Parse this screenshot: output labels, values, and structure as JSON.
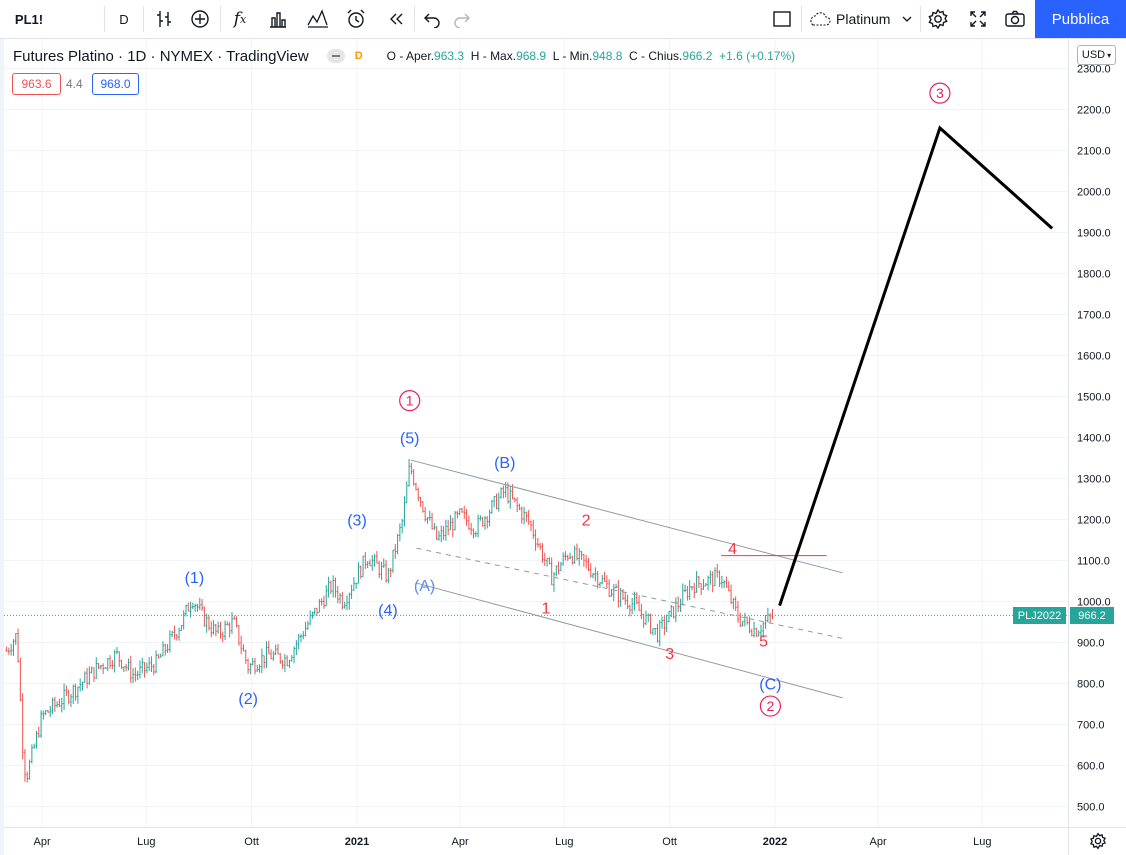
{
  "toolbar": {
    "symbol": "PL1!",
    "interval": "D",
    "instrument_name": "Platinum",
    "publish_label": "Pubblica",
    "icons": [
      "bar-style-icon",
      "add-compare-icon",
      "indicators-icon",
      "financials-icon",
      "templates-icon",
      "alert-icon",
      "replay-icon",
      "undo-icon",
      "redo-icon",
      "layout-icon",
      "cloud-icon",
      "chevron-down-icon",
      "settings-icon",
      "fullscreen-icon",
      "snapshot-icon"
    ]
  },
  "legend": {
    "title": "Futures Platino · 1D · NYMEX · TradingView",
    "badge": "D",
    "open_label": "O - Aper.",
    "open": "963.3",
    "high_label": "H - Max.",
    "high": "968.9",
    "low_label": "L - Min.",
    "low": "948.8",
    "close_label": "C - Chius.",
    "close": "966.2",
    "change": "+1.6 (+0.17%)",
    "bid": "963.6",
    "spread": "4.4",
    "ask": "968.0"
  },
  "price_scale": {
    "currency": "USD",
    "symbol_label": "PLJ2022",
    "last_price": "966.2",
    "last_price_value": 966.2,
    "tick_labels": [
      "2300.0",
      "2200.0",
      "2100.0",
      "2000.0",
      "1900.0",
      "1800.0",
      "1700.0",
      "1600.0",
      "1500.0",
      "1400.0",
      "1300.0",
      "1200.0",
      "1100.0",
      "1000.0",
      "900.0",
      "800.0",
      "700.0",
      "600.0",
      "500.0"
    ]
  },
  "time_axis": {
    "labels": [
      "Apr",
      "Lug",
      "Ott",
      "2021",
      "Apr",
      "Lug",
      "Ott",
      "2022",
      "Apr",
      "Lug"
    ],
    "bold_labels": [
      "2021",
      "2022"
    ]
  },
  "colors": {
    "up": "#26a69a",
    "down": "#ef5350",
    "blue_wave": "#2962ff",
    "red_wave": "#f23645",
    "pink_wave": "#e91e63",
    "lightblue_wave": "#5b8def",
    "channel": "#9598a1",
    "projection": "#000000",
    "accent": "#2962ff"
  },
  "chart_data": {
    "type": "candlestick",
    "instrument": "Futures Platino",
    "ylim": [
      450,
      2325
    ],
    "grid": true,
    "price_path": [
      [
        "2020-03-01",
        880
      ],
      [
        "2020-03-10",
        920
      ],
      [
        "2020-03-16",
        600
      ],
      [
        "2020-03-19",
        580
      ],
      [
        "2020-04-01",
        720
      ],
      [
        "2020-05-01",
        790
      ],
      [
        "2020-05-20",
        840
      ],
      [
        "2020-06-05",
        870
      ],
      [
        "2020-06-20",
        820
      ],
      [
        "2020-07-10",
        850
      ],
      [
        "2020-08-01",
        950
      ],
      [
        "2020-08-10",
        1010
      ],
      [
        "2020-08-20",
        960
      ],
      [
        "2020-09-01",
        920
      ],
      [
        "2020-09-15",
        950
      ],
      [
        "2020-09-28",
        840
      ],
      [
        "2020-10-15",
        870
      ],
      [
        "2020-11-01",
        860
      ],
      [
        "2020-11-20",
        950
      ],
      [
        "2020-12-10",
        1040
      ],
      [
        "2020-12-20",
        1000
      ],
      [
        "2021-01-10",
        1110
      ],
      [
        "2021-01-28",
        1060
      ],
      [
        "2021-02-10",
        1200
      ],
      [
        "2021-02-16",
        1330
      ],
      [
        "2021-03-01",
        1220
      ],
      [
        "2021-03-12",
        1150
      ],
      [
        "2021-04-01",
        1210
      ],
      [
        "2021-04-15",
        1180
      ],
      [
        "2021-05-10",
        1270
      ],
      [
        "2021-06-01",
        1190
      ],
      [
        "2021-06-20",
        1060
      ],
      [
        "2021-07-05",
        1120
      ],
      [
        "2021-07-20",
        1090
      ],
      [
        "2021-08-10",
        1030
      ],
      [
        "2021-09-01",
        990
      ],
      [
        "2021-09-20",
        920
      ],
      [
        "2021-09-30",
        960
      ],
      [
        "2021-10-20",
        1040
      ],
      [
        "2021-11-15",
        1060
      ],
      [
        "2021-11-30",
        960
      ],
      [
        "2021-12-15",
        930
      ],
      [
        "2021-12-31",
        966
      ]
    ],
    "projection": [
      [
        "2022-01-05",
        990
      ],
      [
        "2022-05-25",
        2155
      ],
      [
        "2022-08-31",
        1910
      ]
    ],
    "channel_upper": [
      [
        "2021-02-17",
        1345
      ],
      [
        "2022-03-01",
        1070
      ]
    ],
    "channel_mid": [
      [
        "2021-02-22",
        1130
      ],
      [
        "2022-03-01",
        910
      ]
    ],
    "channel_lower": [
      [
        "2021-02-22",
        1045
      ],
      [
        "2022-03-01",
        765
      ]
    ],
    "wave4_level": [
      [
        "2021-11-15",
        1112
      ],
      [
        "2022-02-15",
        1112
      ]
    ],
    "wave_labels": [
      {
        "text": "(1)",
        "date": "2020-08-12",
        "price": 1060,
        "color": "blue"
      },
      {
        "text": "(2)",
        "date": "2020-09-28",
        "price": 765,
        "color": "blue"
      },
      {
        "text": "(3)",
        "date": "2021-01-01",
        "price": 1200,
        "color": "blue"
      },
      {
        "text": "(4)",
        "date": "2021-01-28",
        "price": 980,
        "color": "blue"
      },
      {
        "text": "(5)",
        "date": "2021-02-16",
        "price": 1400,
        "color": "blue"
      },
      {
        "text": "(A)",
        "date": "2021-03-01",
        "price": 1040,
        "color": "lightblue"
      },
      {
        "text": "(B)",
        "date": "2021-05-10",
        "price": 1340,
        "color": "blue"
      },
      {
        "text": "(C)",
        "date": "2021-12-28",
        "price": 800,
        "color": "blue"
      },
      {
        "text": "1",
        "date": "2021-06-15",
        "price": 985,
        "color": "red"
      },
      {
        "text": "2",
        "date": "2021-07-20",
        "price": 1200,
        "color": "red"
      },
      {
        "text": "3",
        "date": "2021-10-01",
        "price": 875,
        "color": "red"
      },
      {
        "text": "4",
        "date": "2021-11-25",
        "price": 1130,
        "color": "red"
      },
      {
        "text": "5",
        "date": "2021-12-22",
        "price": 905,
        "color": "red"
      }
    ],
    "circled_labels": [
      {
        "text": "1",
        "date": "2021-02-16",
        "price": 1490
      },
      {
        "text": "2",
        "date": "2021-12-28",
        "price": 745
      },
      {
        "text": "3",
        "date": "2022-05-25",
        "price": 2240
      }
    ]
  }
}
